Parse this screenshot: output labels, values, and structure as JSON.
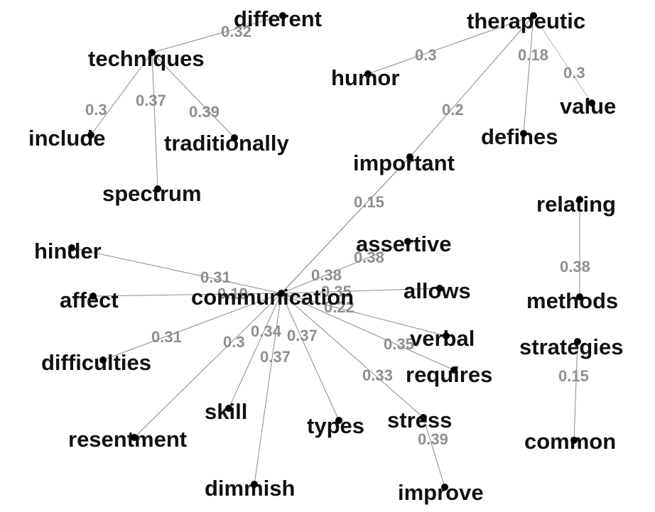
{
  "graph": {
    "node_color": "#111111",
    "edge_color": "#8a8a8a",
    "weight_color": "#8f8f8f",
    "nodes": [
      "different",
      "therapeutic",
      "techniques",
      "humor",
      "value",
      "include",
      "traditionally",
      "defines",
      "important",
      "spectrum",
      "relating",
      "assertive",
      "hinder",
      "allows",
      "affect",
      "communication",
      "methods",
      "verbal",
      "difficulties",
      "strategies",
      "requires",
      "skill",
      "types",
      "stress",
      "resentment",
      "common",
      "dimmish",
      "improve"
    ],
    "edges": [
      {
        "from": "techniques",
        "to": "different",
        "weight": "0.32"
      },
      {
        "from": "techniques",
        "to": "include",
        "weight": "0.3"
      },
      {
        "from": "techniques",
        "to": "spectrum",
        "weight": "0.37"
      },
      {
        "from": "techniques",
        "to": "traditionally",
        "weight": "0.39"
      },
      {
        "from": "therapeutic",
        "to": "humor",
        "weight": "0.3"
      },
      {
        "from": "therapeutic",
        "to": "defines",
        "weight": "0.18"
      },
      {
        "from": "therapeutic",
        "to": "value",
        "weight": "0.3"
      },
      {
        "from": "therapeutic",
        "to": "important",
        "weight": "0.2"
      },
      {
        "from": "important",
        "to": "communication",
        "weight": "0.15"
      },
      {
        "from": "communication",
        "to": "assertive",
        "weight": "0.38"
      },
      {
        "from": "communication",
        "to": "hinder",
        "weight": "0.31"
      },
      {
        "from": "communication",
        "to": "affect",
        "weight": "0.19"
      },
      {
        "from": "communication",
        "to": "allows",
        "weight": "0.35"
      },
      {
        "from": "communication",
        "to": "verbal",
        "weight": "0.22"
      },
      {
        "from": "communication",
        "to": "requires",
        "weight": "0.35"
      },
      {
        "from": "communication",
        "to": "difficulties",
        "weight": "0.31"
      },
      {
        "from": "communication",
        "to": "resentment",
        "weight": "0.3"
      },
      {
        "from": "communication",
        "to": "skill",
        "weight": "0.34"
      },
      {
        "from": "communication",
        "to": "dimmish",
        "weight": "0.37"
      },
      {
        "from": "communication",
        "to": "types",
        "weight": "0.37"
      },
      {
        "from": "communication",
        "to": "stress",
        "weight": "0.33"
      },
      {
        "from": "communication",
        "to": "important",
        "weight": "0.38"
      },
      {
        "from": "stress",
        "to": "improve",
        "weight": "0.39"
      },
      {
        "from": "relating",
        "to": "methods",
        "weight": "0.38"
      },
      {
        "from": "strategies",
        "to": "common",
        "weight": "0.15"
      }
    ]
  }
}
